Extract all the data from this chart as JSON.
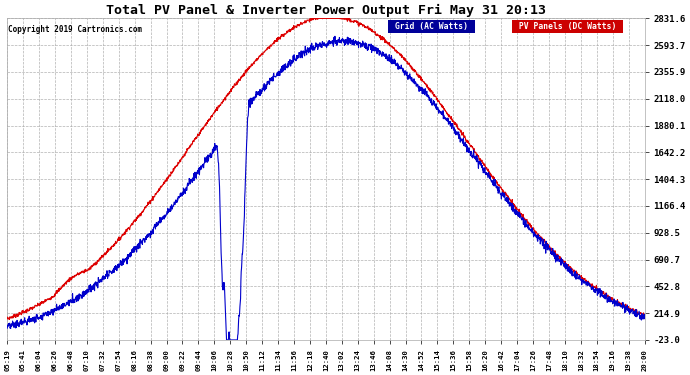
{
  "title": "Total PV Panel & Inverter Power Output Fri May 31 20:13",
  "copyright": "Copyright 2019 Cartronics.com",
  "legend_blue": "Grid (AC Watts)",
  "legend_red": "PV Panels (DC Watts)",
  "bg_color": "#ffffff",
  "plot_bg_color": "#ffffff",
  "grid_color": "#aaaaaa",
  "blue_color": "#0000cc",
  "red_color": "#dd0000",
  "title_color": "#000000",
  "label_color": "#000000",
  "copyright_color": "#000000",
  "ytick_labels": [
    "2831.6",
    "2593.7",
    "2355.9",
    "2118.0",
    "1880.1",
    "1642.2",
    "1404.3",
    "1166.4",
    "928.5",
    "690.7",
    "452.8",
    "214.9",
    "-23.0"
  ],
  "ytick_values": [
    2831.6,
    2593.7,
    2355.9,
    2118.0,
    1880.1,
    1642.2,
    1404.3,
    1166.4,
    928.5,
    690.7,
    452.8,
    214.9,
    -23.0
  ],
  "ymin": -23.0,
  "ymax": 2831.6,
  "xtick_labels": [
    "05:19",
    "05:41",
    "06:04",
    "06:26",
    "06:48",
    "07:10",
    "07:32",
    "07:54",
    "08:16",
    "08:38",
    "09:00",
    "09:22",
    "09:44",
    "10:06",
    "10:28",
    "10:50",
    "11:12",
    "11:34",
    "11:56",
    "12:18",
    "12:40",
    "13:02",
    "13:24",
    "13:46",
    "14:08",
    "14:30",
    "14:52",
    "15:14",
    "15:36",
    "15:58",
    "16:20",
    "16:42",
    "17:04",
    "17:26",
    "17:48",
    "18:10",
    "18:32",
    "18:54",
    "19:16",
    "19:38",
    "20:00"
  ]
}
